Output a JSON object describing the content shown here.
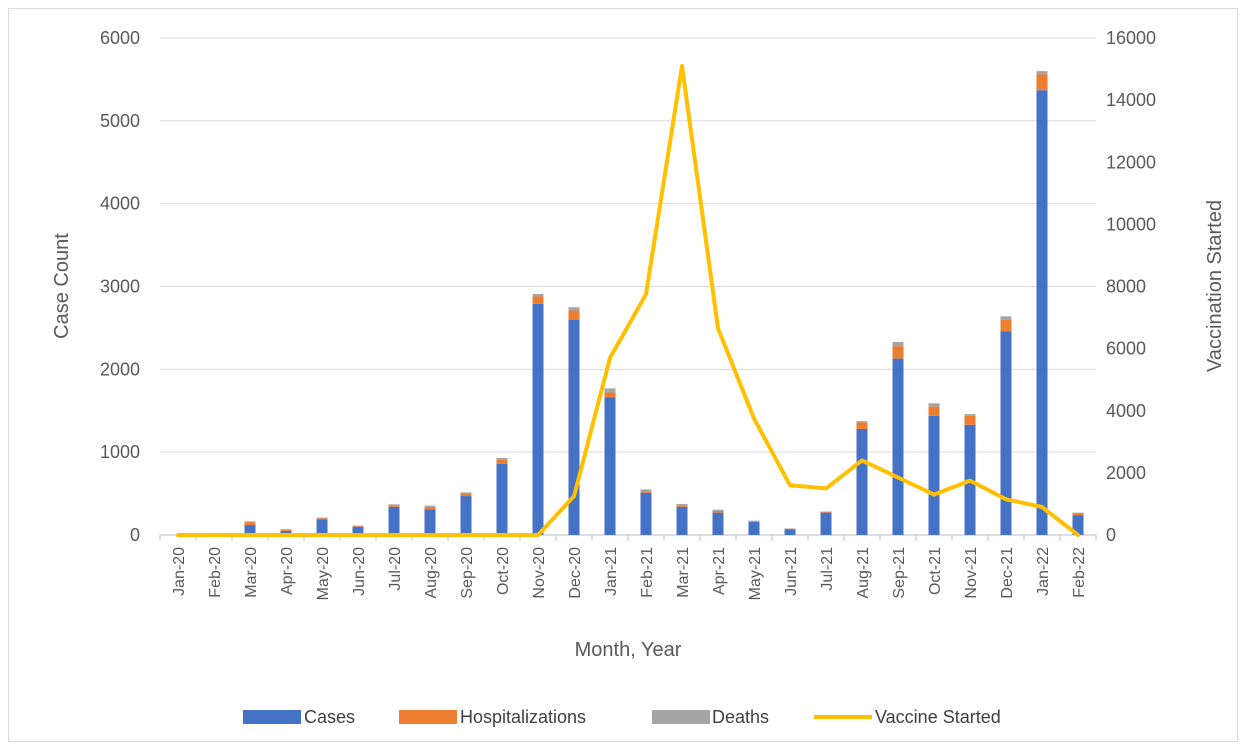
{
  "chart_data": {
    "type": "bar",
    "stacked": true,
    "categories": [
      "Jan-20",
      "Feb-20",
      "Mar-20",
      "Apr-20",
      "May-20",
      "Jun-20",
      "Jul-20",
      "Aug-20",
      "Sep-20",
      "Oct-20",
      "Nov-20",
      "Dec-20",
      "Jan-21",
      "Feb-21",
      "Mar-21",
      "Apr-21",
      "May-21",
      "Jun-21",
      "Jul-21",
      "Aug-21",
      "Sep-21",
      "Oct-21",
      "Nov-21",
      "Dec-21",
      "Jan-22",
      "Feb-22"
    ],
    "series": [
      {
        "name": "Cases",
        "type": "bar",
        "axis": "left",
        "color": "#4472c4",
        "values": [
          0,
          0,
          120,
          50,
          190,
          100,
          340,
          310,
          470,
          860,
          2790,
          2600,
          1660,
          510,
          340,
          270,
          160,
          70,
          270,
          1280,
          2130,
          1440,
          1330,
          2460,
          5370,
          240
        ]
      },
      {
        "name": "Hospitalizations",
        "type": "bar",
        "axis": "left",
        "color": "#ed7d31",
        "values": [
          0,
          0,
          35,
          10,
          10,
          8,
          20,
          30,
          30,
          50,
          90,
          110,
          60,
          20,
          20,
          20,
          8,
          5,
          10,
          80,
          150,
          110,
          110,
          140,
          190,
          20
        ]
      },
      {
        "name": "Deaths",
        "type": "bar",
        "axis": "left",
        "color": "#a5a5a5",
        "values": [
          0,
          0,
          10,
          10,
          10,
          5,
          10,
          15,
          15,
          20,
          30,
          40,
          50,
          20,
          15,
          15,
          5,
          5,
          5,
          15,
          50,
          40,
          20,
          40,
          40,
          10
        ]
      },
      {
        "name": "Vaccine Started",
        "type": "line",
        "axis": "right",
        "color": "#ffc000",
        "values": [
          0,
          0,
          0,
          0,
          0,
          0,
          0,
          0,
          0,
          0,
          0,
          1250,
          5700,
          7750,
          15100,
          6650,
          3750,
          1600,
          1500,
          2400,
          1850,
          1300,
          1750,
          1150,
          900,
          0
        ]
      }
    ],
    "xlabel": "Month, Year",
    "ylabel": "Case Count",
    "y2label": "Vaccination Started",
    "ylim": [
      0,
      6000
    ],
    "y2lim": [
      0,
      16000
    ],
    "yticks": [
      "0",
      "1000",
      "2000",
      "3000",
      "4000",
      "5000",
      "6000"
    ],
    "y2ticks": [
      "0",
      "2000",
      "4000",
      "6000",
      "8000",
      "10000",
      "12000",
      "14000",
      "16000"
    ],
    "grid": true,
    "legend_position": "bottom"
  }
}
